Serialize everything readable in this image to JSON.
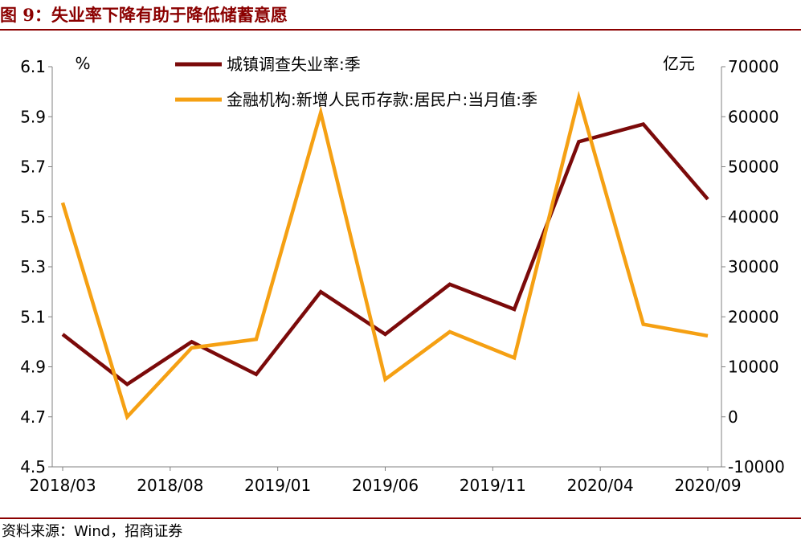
{
  "header": {
    "title": "图 9：失业率下降有助于降低储蓄意愿"
  },
  "footer": {
    "source": "资料来源：Wind，招商证券"
  },
  "chart_data": {
    "type": "line",
    "left_unit": "%",
    "right_unit": "亿元",
    "x_tick_labels": [
      "2018/03",
      "2018/08",
      "2019/01",
      "2019/06",
      "2019/11",
      "2020/04",
      "2020/09"
    ],
    "y_left_ticks": [
      "4.5",
      "4.7",
      "4.9",
      "5.1",
      "5.3",
      "5.5",
      "5.7",
      "5.9",
      "6.1"
    ],
    "y_right_ticks": [
      "-10000",
      "0",
      "10000",
      "20000",
      "30000",
      "40000",
      "50000",
      "60000",
      "70000"
    ],
    "ylim_left": [
      4.5,
      6.1
    ],
    "ylim_right": [
      -10000,
      70000
    ],
    "x": [
      "2018/03",
      "2018/06",
      "2018/09",
      "2018/12",
      "2019/03",
      "2019/06",
      "2019/09",
      "2019/12",
      "2020/03",
      "2020/06",
      "2020/09"
    ],
    "series": [
      {
        "name": "城镇调查失业率:季",
        "axis": "left",
        "color": "#7b0a0a",
        "values": [
          5.03,
          4.83,
          5.0,
          4.87,
          5.2,
          5.03,
          5.23,
          5.13,
          5.8,
          5.87,
          5.57
        ]
      },
      {
        "name": "金融机构:新增人民币存款:居民户:当月值:季",
        "axis": "right",
        "color": "#f5a013",
        "values": [
          42800,
          0,
          13800,
          15500,
          60800,
          7500,
          17000,
          11800,
          63800,
          18500,
          16200
        ]
      }
    ],
    "legend_position": "top",
    "grid": false
  }
}
